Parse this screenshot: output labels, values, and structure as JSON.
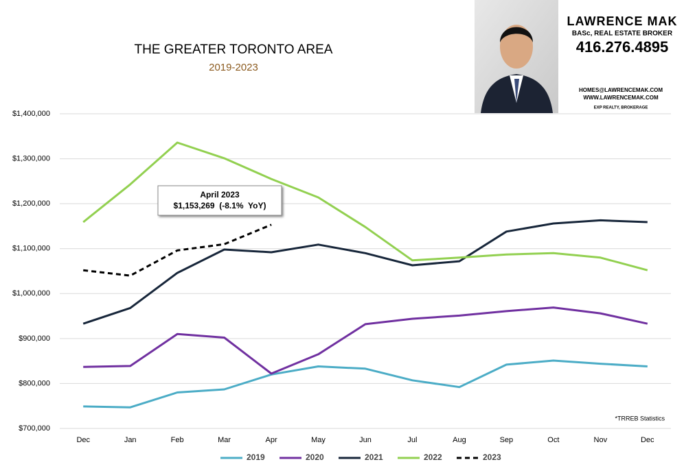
{
  "chart_data": {
    "type": "line",
    "title": "THE GREATER TORONTO AREA",
    "subtitle": "2019-2023",
    "categories": [
      "Dec",
      "Jan",
      "Feb",
      "Mar",
      "Apr",
      "May",
      "Jun",
      "Jul",
      "Aug",
      "Sep",
      "Oct",
      "Nov",
      "Dec"
    ],
    "series": [
      {
        "name": "2019",
        "color": "#4bacc6",
        "values": [
          749000,
          747000,
          780000,
          787000,
          820000,
          838000,
          833000,
          807000,
          792000,
          842000,
          851000,
          844000,
          838000
        ]
      },
      {
        "name": "2020",
        "color": "#7030a0",
        "values": [
          837000,
          839000,
          910000,
          902000,
          822000,
          865000,
          932000,
          944000,
          951000,
          961000,
          969000,
          956000,
          933000
        ]
      },
      {
        "name": "2021",
        "color": "#17263a",
        "values": [
          933000,
          968000,
          1046000,
          1098000,
          1092000,
          1109000,
          1090000,
          1063000,
          1072000,
          1138000,
          1156000,
          1163000,
          1159000
        ]
      },
      {
        "name": "2022",
        "color": "#92d050",
        "values": [
          1159000,
          1243000,
          1336000,
          1301000,
          1255000,
          1214000,
          1148000,
          1074000,
          1080000,
          1087000,
          1090000,
          1080000,
          1052000
        ]
      },
      {
        "name": "2023",
        "color": "#000000",
        "dashed": true,
        "values": [
          1052000,
          1040000,
          1096000,
          1110000,
          1153269,
          null,
          null,
          null,
          null,
          null,
          null,
          null,
          null
        ]
      }
    ],
    "ylim": [
      700000,
      1400000
    ],
    "yticks": [
      {
        "value": 700000,
        "label": "$700,000"
      },
      {
        "value": 800000,
        "label": "$800,000"
      },
      {
        "value": 900000,
        "label": "$900,000"
      },
      {
        "value": 1000000,
        "label": "$1,000,000"
      },
      {
        "value": 1100000,
        "label": "$1,100,000"
      },
      {
        "value": 1200000,
        "label": "$1,200,000"
      },
      {
        "value": 1300000,
        "label": "$1,300,000"
      },
      {
        "value": 1400000,
        "label": "$1,400,000"
      }
    ],
    "grid": true,
    "legend": "bottom",
    "annotation": {
      "title": "April 2023",
      "text": "$1,153,269  (-8.1%  YoY)"
    },
    "footnote": "*TRREB Statistics"
  },
  "contact": {
    "name": "LAWRENCE MAK",
    "credentials": "BASc, REAL ESTATE BROKER",
    "phone": "416.276.4895",
    "email": "HOMES@LAWRENCEMAK.COM",
    "website": "WWW.LAWRENCEMAK.COM",
    "brokerage": "EXP REALTY, BROKERAGE"
  }
}
